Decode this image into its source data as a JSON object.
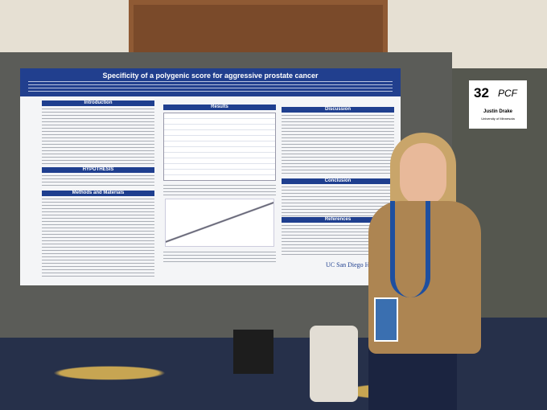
{
  "poster": {
    "title": "Specificity of a polygenic score for aggressive prostate cancer",
    "sections": [
      "Introduction",
      "HYPOTHESIS",
      "Methods and Materials",
      "Results",
      "Discussion",
      "Conclusion",
      "References"
    ],
    "footer_logo": "UC San Diego Health"
  },
  "sign": {
    "number": "32",
    "logo": "PCF",
    "name": "Justin Drake",
    "affiliation": "University of Minnesota"
  }
}
